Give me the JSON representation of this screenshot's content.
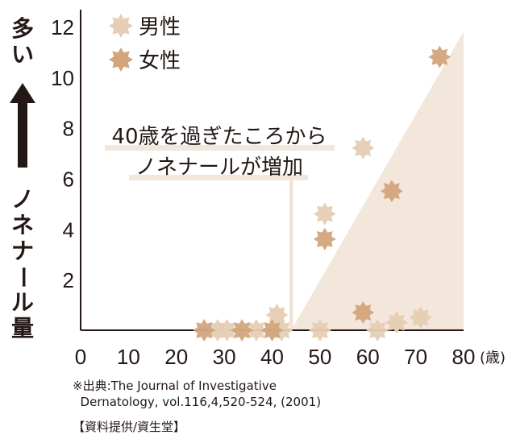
{
  "chart_data": {
    "type": "scatter",
    "title": "",
    "ylabel_top": "多い",
    "ylabel": "ノネナール量",
    "xlabel": "(歳)",
    "xlim": [
      0,
      80
    ],
    "ylim": [
      0,
      12
    ],
    "xticks": [
      0,
      10,
      20,
      30,
      40,
      50,
      60,
      70,
      80
    ],
    "yticks": [
      2,
      4,
      6,
      8,
      10,
      12
    ],
    "grid": false,
    "legend_placement": "top-left",
    "annotation": [
      "40歳を過ぎたころから",
      "ノネナールが増加"
    ],
    "annotation_x": 44,
    "trend_region": {
      "x": [
        44,
        80
      ],
      "y": [
        0,
        11.8
      ]
    },
    "series": [
      {
        "name": "男性",
        "color": "#e6cdb4",
        "points": [
          [
            28.6,
            0
          ],
          [
            30.6,
            0
          ],
          [
            36.7,
            0
          ],
          [
            41,
            0.6
          ],
          [
            42,
            0
          ],
          [
            50,
            0
          ],
          [
            51,
            4.6
          ],
          [
            59,
            7.2
          ],
          [
            62,
            0
          ],
          [
            66,
            0.3
          ],
          [
            71,
            0.5
          ]
        ]
      },
      {
        "name": "女性",
        "color": "#d2a57c",
        "points": [
          [
            25.8,
            0
          ],
          [
            33.7,
            0
          ],
          [
            40,
            0
          ],
          [
            51,
            3.6
          ],
          [
            59,
            0.7
          ],
          [
            65,
            5.5
          ],
          [
            75,
            10.8
          ]
        ]
      }
    ]
  },
  "source": {
    "line1": "※出典:The Journal of Investigative",
    "line2": "  Dernatology, vol.116,4,520-524, (2001)",
    "credit": "【資料提供/資生堂】"
  },
  "colors": {
    "region": "#f3e6da",
    "axis": "#231815",
    "arrow": "#231815"
  }
}
